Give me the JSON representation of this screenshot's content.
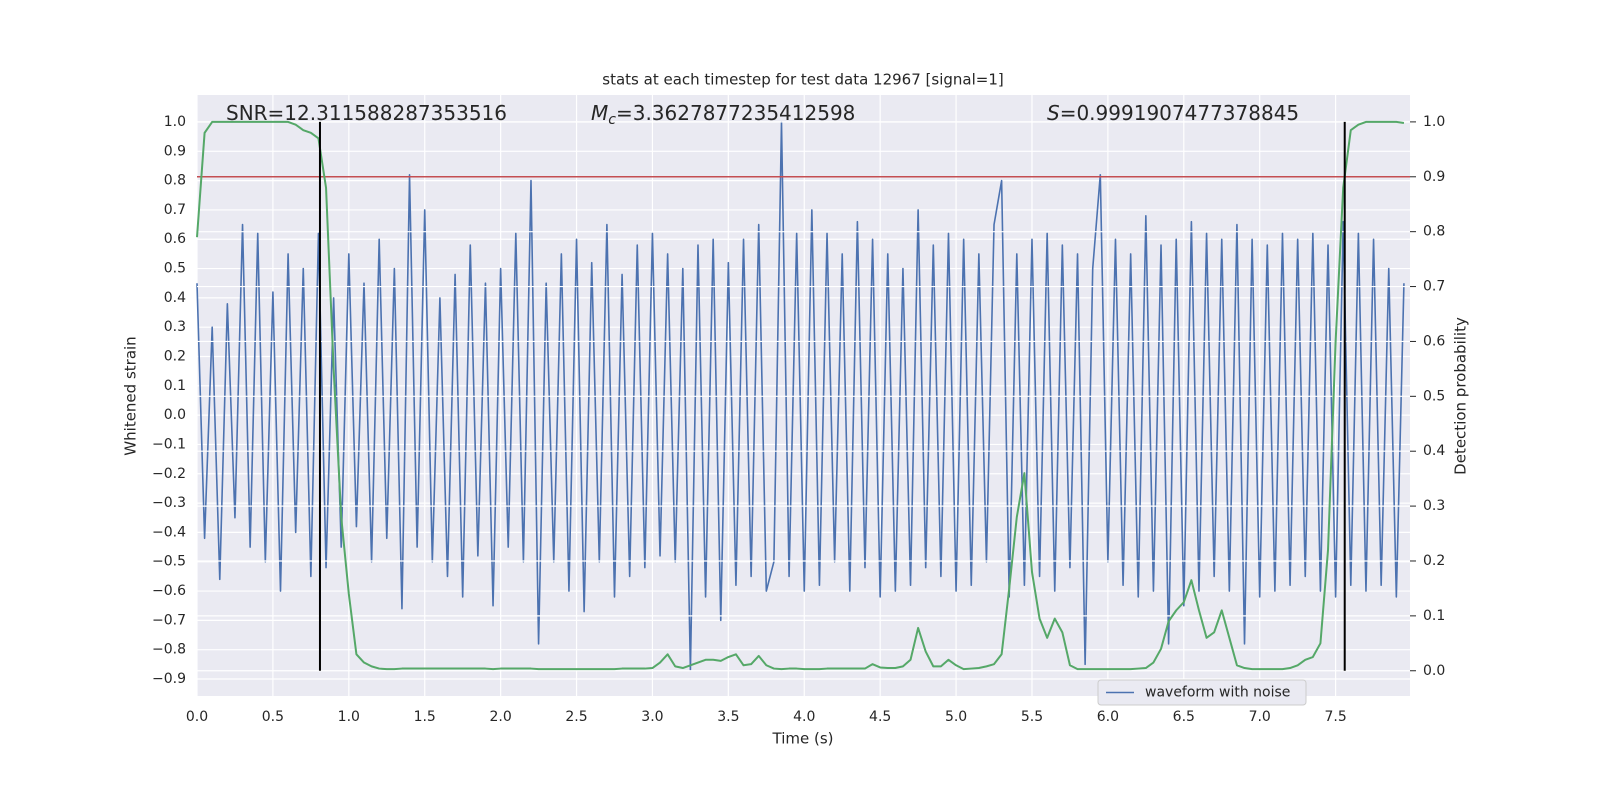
{
  "chart_data": {
    "type": "line",
    "title": "stats at each timestep for test data 12967 [signal=1]",
    "annotations": [
      {
        "text": "SNR=12.311588287353516"
      },
      {
        "symbol": "M",
        "subscript": "c",
        "text": "=3.3627877235412598"
      },
      {
        "symbol": "S",
        "text": "=0.9991907477378845"
      }
    ],
    "xlabel": "Time (s)",
    "ylabel": "Whitened strain",
    "y2label": "Detection probability",
    "xlim": [
      0,
      7.99
    ],
    "ylim": [
      -0.958,
      1.092
    ],
    "y2lim": [
      -0.046,
      1.049
    ],
    "xticks": [
      {
        "value": 0,
        "label": "0.0"
      },
      0.5,
      {
        "value": 1,
        "label": "1.0"
      },
      1.5,
      {
        "value": 2,
        "label": "2.0"
      },
      2.5,
      {
        "value": 3,
        "label": "3.0"
      },
      3.5,
      {
        "value": 4,
        "label": "4.0"
      },
      4.5,
      {
        "value": 5,
        "label": "5.0"
      },
      5.5,
      {
        "value": 6,
        "label": "6.0"
      },
      6.5,
      {
        "value": 7,
        "label": "7.0"
      },
      7.5
    ],
    "yticks": [
      {
        "value": -0.9,
        "label": "−0.9"
      },
      {
        "value": -0.8,
        "label": "−0.8"
      },
      {
        "value": -0.7,
        "label": "−0.7"
      },
      {
        "value": -0.6,
        "label": "−0.6"
      },
      {
        "value": -0.5,
        "label": "−0.5"
      },
      {
        "value": -0.4,
        "label": "−0.4"
      },
      {
        "value": -0.3,
        "label": "−0.3"
      },
      {
        "value": -0.2,
        "label": "−0.2"
      },
      {
        "value": -0.1,
        "label": "−0.1"
      },
      {
        "value": 0,
        "label": "0.0"
      },
      0.1,
      0.2,
      0.3,
      0.4,
      0.5,
      0.6,
      0.7,
      0.8,
      0.9,
      {
        "value": 1,
        "label": "1.0"
      }
    ],
    "y2ticks": [
      {
        "value": 0,
        "label": "0.0"
      },
      0.1,
      0.2,
      0.3,
      0.4,
      0.5,
      0.6,
      0.7,
      0.8,
      0.9,
      {
        "value": 1,
        "label": "1.0"
      }
    ],
    "grid": true,
    "legend": "lower right",
    "x": [
      0,
      0.05,
      0.1,
      0.15,
      0.2,
      0.25,
      0.3,
      0.35,
      0.4,
      0.45,
      0.5,
      0.55,
      0.6,
      0.65,
      0.7,
      0.75,
      0.8,
      0.85,
      0.9,
      0.95,
      1,
      1.05,
      1.1,
      1.15,
      1.2,
      1.25,
      1.3,
      1.35,
      1.4,
      1.45,
      1.5,
      1.55,
      1.6,
      1.65,
      1.7,
      1.75,
      1.8,
      1.85,
      1.9,
      1.95,
      2,
      2.05,
      2.1,
      2.15,
      2.2,
      2.25,
      2.3,
      2.35,
      2.4,
      2.45,
      2.5,
      2.55,
      2.6,
      2.65,
      2.7,
      2.75,
      2.8,
      2.85,
      2.9,
      2.95,
      3,
      3.05,
      3.1,
      3.15,
      3.2,
      3.25,
      3.3,
      3.35,
      3.4,
      3.45,
      3.5,
      3.55,
      3.6,
      3.65,
      3.7,
      3.75,
      3.8,
      3.85,
      3.9,
      3.95,
      4,
      4.05,
      4.1,
      4.15,
      4.2,
      4.25,
      4.3,
      4.35,
      4.4,
      4.45,
      4.5,
      4.55,
      4.6,
      4.65,
      4.7,
      4.75,
      4.8,
      4.85,
      4.9,
      4.95,
      5,
      5.05,
      5.1,
      5.15,
      5.2,
      5.25,
      5.3,
      5.35,
      5.4,
      5.45,
      5.5,
      5.55,
      5.6,
      5.65,
      5.7,
      5.75,
      5.8,
      5.85,
      5.9,
      5.95,
      6,
      6.05,
      6.1,
      6.15,
      6.2,
      6.25,
      6.3,
      6.35,
      6.4,
      6.45,
      6.5,
      6.55,
      6.6,
      6.65,
      6.7,
      6.75,
      6.8,
      6.85,
      6.9,
      6.95,
      7,
      7.05,
      7.1,
      7.15,
      7.2,
      7.25,
      7.3,
      7.35,
      7.4,
      7.45,
      7.5,
      7.55,
      7.6,
      7.65,
      7.7,
      7.75,
      7.8,
      7.85,
      7.9,
      7.95
    ],
    "series": [
      {
        "name": "waveform with noise",
        "color": "#4c72b0",
        "values": [
          0.45,
          -0.42,
          0.3,
          -0.56,
          0.38,
          -0.35,
          0.65,
          -0.45,
          0.62,
          -0.5,
          0.42,
          -0.6,
          0.55,
          -0.4,
          0.5,
          -0.55,
          0.62,
          -0.52,
          0.4,
          -0.45,
          0.55,
          -0.38,
          0.45,
          -0.5,
          0.6,
          -0.42,
          0.5,
          -0.66,
          0.82,
          -0.45,
          0.7,
          -0.5,
          0.4,
          -0.55,
          0.48,
          -0.62,
          0.58,
          -0.48,
          0.45,
          -0.65,
          0.5,
          -0.45,
          0.62,
          -0.5,
          0.8,
          -0.78,
          0.45,
          -0.5,
          0.55,
          -0.6,
          0.6,
          -0.67,
          0.52,
          -0.5,
          0.65,
          -0.62,
          0.48,
          -0.55,
          0.58,
          -0.52,
          0.62,
          -0.48,
          0.55,
          -0.5,
          0.5,
          -0.87,
          0.58,
          -0.62,
          0.6,
          -0.7,
          0.52,
          -0.58,
          0.6,
          -0.55,
          0.65,
          -0.6,
          -0.5,
          1.0,
          -0.55,
          0.62,
          -0.6,
          0.7,
          -0.58,
          0.62,
          -0.5,
          0.55,
          -0.6,
          0.66,
          -0.52,
          0.6,
          -0.62,
          0.55,
          -0.6,
          0.5,
          -0.58,
          0.7,
          -0.52,
          0.58,
          -0.55,
          0.62,
          -0.6,
          0.6,
          -0.58,
          0.55,
          -0.5,
          0.65,
          0.8,
          -0.62,
          0.55,
          -0.58,
          0.6,
          -0.55,
          0.62,
          -0.6,
          0.58,
          -0.52,
          0.55,
          -0.85,
          0.5,
          0.82,
          -0.5,
          0.6,
          -0.58,
          0.55,
          -0.62,
          0.68,
          -0.6,
          0.58,
          -0.78,
          0.6,
          -0.65,
          0.66,
          -0.6,
          0.62,
          -0.55,
          0.6,
          -0.6,
          0.65,
          -0.78,
          0.6,
          -0.62,
          0.58,
          -0.6,
          0.62,
          -0.58,
          0.6,
          -0.55,
          0.62,
          -0.6,
          0.58,
          -0.62,
          0.66,
          -0.58,
          0.62,
          -0.6,
          0.6,
          -0.58,
          0.5,
          -0.62,
          0.45
        ]
      }
    ],
    "probability": {
      "color": "#55a868",
      "axis": "y2",
      "values": [
        0.79,
        0.98,
        1.0,
        1.0,
        1.0,
        1.0,
        1.0,
        1.0,
        1.0,
        1.0,
        1.0,
        1.0,
        1.0,
        0.995,
        0.985,
        0.98,
        0.97,
        0.88,
        0.55,
        0.28,
        0.14,
        0.03,
        0.015,
        0.008,
        0.004,
        0.003,
        0.003,
        0.004,
        0.004,
        0.004,
        0.004,
        0.004,
        0.004,
        0.004,
        0.004,
        0.004,
        0.004,
        0.004,
        0.004,
        0.003,
        0.004,
        0.004,
        0.004,
        0.004,
        0.004,
        0.003,
        0.003,
        0.003,
        0.003,
        0.003,
        0.003,
        0.003,
        0.003,
        0.003,
        0.003,
        0.003,
        0.004,
        0.004,
        0.004,
        0.004,
        0.005,
        0.015,
        0.03,
        0.008,
        0.005,
        0.01,
        0.015,
        0.02,
        0.02,
        0.018,
        0.025,
        0.03,
        0.01,
        0.012,
        0.027,
        0.01,
        0.004,
        0.003,
        0.004,
        0.004,
        0.003,
        0.003,
        0.003,
        0.004,
        0.004,
        0.004,
        0.004,
        0.004,
        0.004,
        0.012,
        0.006,
        0.005,
        0.005,
        0.008,
        0.02,
        0.078,
        0.035,
        0.008,
        0.008,
        0.02,
        0.01,
        0.003,
        0.004,
        0.005,
        0.008,
        0.012,
        0.03,
        0.15,
        0.28,
        0.36,
        0.18,
        0.095,
        0.06,
        0.095,
        0.07,
        0.01,
        0.003,
        0.003,
        0.003,
        0.003,
        0.003,
        0.003,
        0.003,
        0.003,
        0.004,
        0.005,
        0.015,
        0.04,
        0.09,
        0.11,
        0.125,
        0.165,
        0.11,
        0.06,
        0.07,
        0.11,
        0.06,
        0.01,
        0.005,
        0.003,
        0.003,
        0.003,
        0.003,
        0.003,
        0.005,
        0.01,
        0.02,
        0.025,
        0.05,
        0.22,
        0.6,
        0.88,
        0.985,
        0.995,
        1.0,
        1.0,
        1.0,
        1.0,
        1.0,
        0.998
      ]
    },
    "threshold": {
      "value": 0.9,
      "axis": "y2",
      "color": "#c44e52"
    },
    "event_lines": {
      "x": [
        0.81,
        7.56
      ],
      "from": 0,
      "to": 1,
      "color": "#000000"
    }
  }
}
